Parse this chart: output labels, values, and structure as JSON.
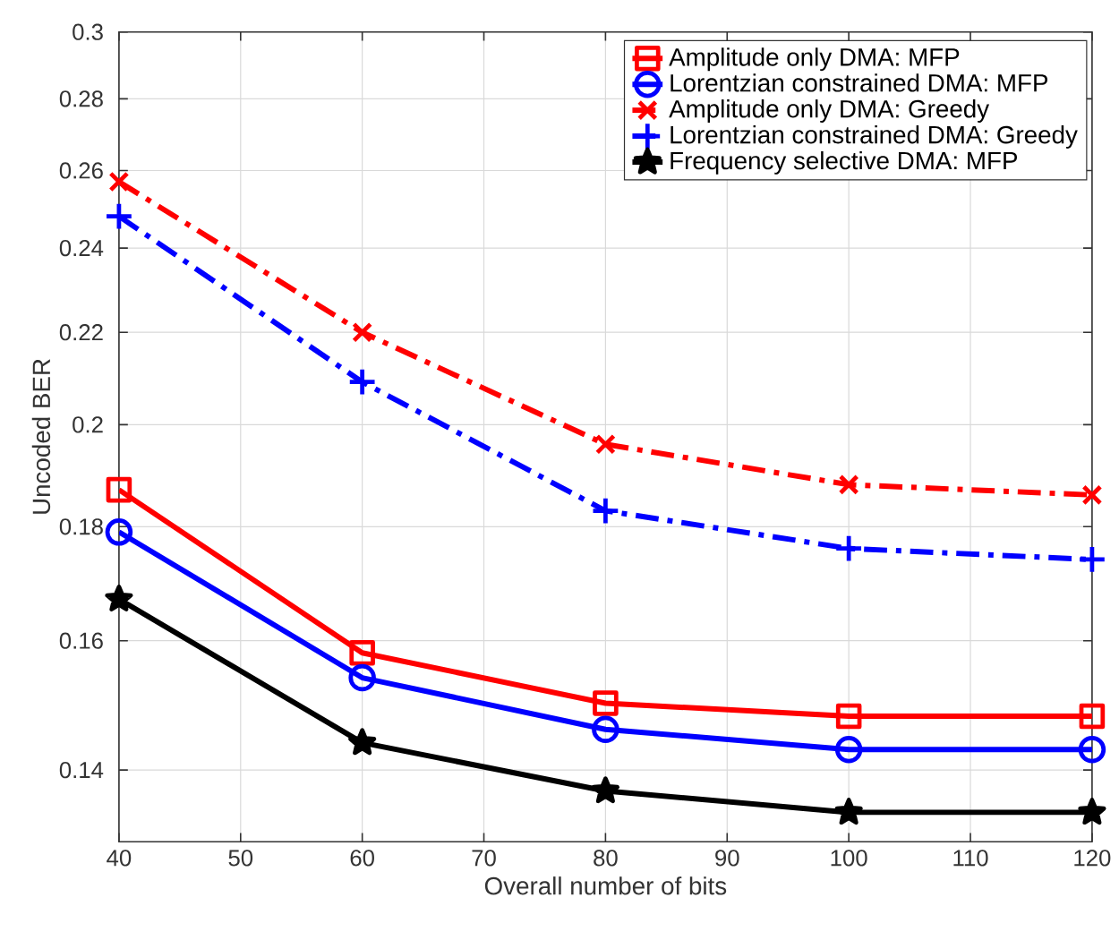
{
  "chart_data": {
    "type": "line",
    "xlabel": "Overall number of bits",
    "ylabel": "Uncoded BER",
    "x": [
      40,
      60,
      80,
      100,
      120
    ],
    "series": [
      {
        "name": "Amplitude only DMA: MFP",
        "color": "#ff0000",
        "marker": "square",
        "line_style": "solid",
        "values": [
          0.187,
          0.158,
          0.15,
          0.148,
          0.148
        ]
      },
      {
        "name": "Lorentzian constrained DMA: MFP",
        "color": "#0000ff",
        "marker": "circle",
        "line_style": "solid",
        "values": [
          0.179,
          0.154,
          0.146,
          0.143,
          0.143
        ]
      },
      {
        "name": "Amplitude only DMA: Greedy",
        "color": "#ff0000",
        "marker": "cross",
        "line_style": "dashdot",
        "values": [
          0.257,
          0.22,
          0.196,
          0.188,
          0.186
        ]
      },
      {
        "name": "Lorentzian constrained DMA: Greedy",
        "color": "#0000ff",
        "marker": "plus",
        "line_style": "dashdot",
        "values": [
          0.248,
          0.209,
          0.183,
          0.176,
          0.174
        ]
      },
      {
        "name": "Frequency selective DMA: MFP",
        "color": "#000000",
        "marker": "star",
        "line_style": "solid",
        "values": [
          0.167,
          0.144,
          0.137,
          0.134,
          0.134
        ]
      }
    ],
    "xlim": [
      40,
      120
    ],
    "xticks": [
      40,
      50,
      60,
      70,
      80,
      90,
      100,
      110,
      120
    ],
    "ylim": [
      0.13,
      0.3
    ],
    "yticks": [
      {
        "value": 0.14,
        "label": "0.14"
      },
      {
        "value": 0.16,
        "label": "0.16"
      },
      {
        "value": 0.18,
        "label": "0.18"
      },
      {
        "value": 0.2,
        "label": "0.2"
      },
      {
        "value": 0.22,
        "label": "0.22"
      },
      {
        "value": 0.24,
        "label": "0.24"
      },
      {
        "value": 0.26,
        "label": "0.26"
      },
      {
        "value": 0.28,
        "label": "0.28"
      },
      {
        "value": 0.3,
        "label": "0.3"
      }
    ],
    "log": "y",
    "grid": true,
    "legend": "top right"
  }
}
